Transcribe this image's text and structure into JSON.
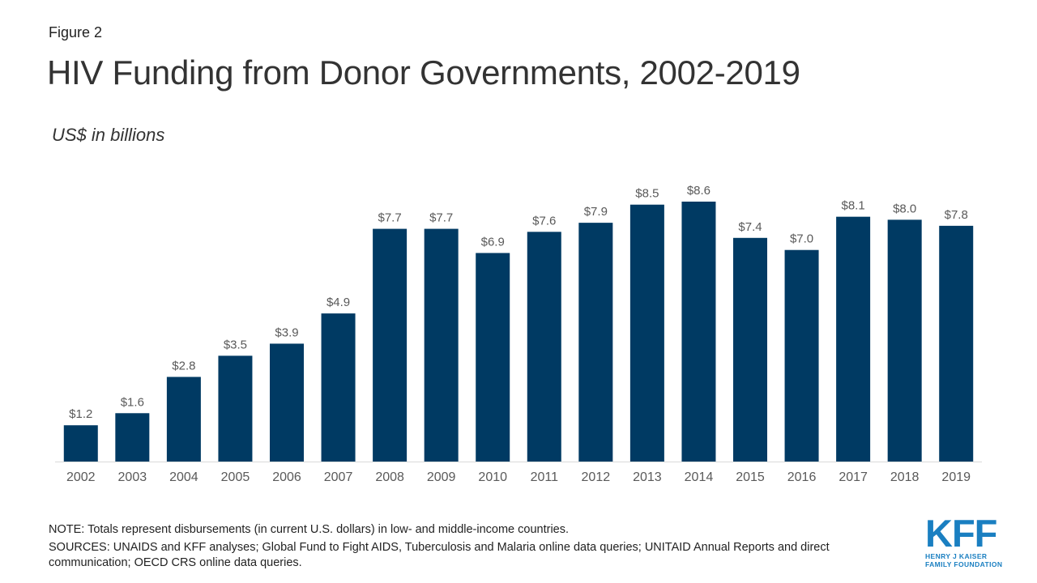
{
  "header": {
    "figure_label": "Figure 2",
    "title": "HIV Funding from Donor Governments, 2002-2019",
    "subtitle": "US$ in billions"
  },
  "footer": {
    "note": "NOTE: Totals represent disbursements (in current U.S. dollars) in low- and middle-income countries.",
    "sources": "SOURCES: UNAIDS and KFF analyses; Global Fund to Fight AIDS, Tuberculosis and Malaria online data queries; UNITAID Annual Reports and direct communication; OECD CRS online data queries."
  },
  "logo": {
    "mark": "KFF",
    "line1": "HENRY J KAISER",
    "line2": "FAMILY FOUNDATION"
  },
  "colors": {
    "bar": "#003a63",
    "label": "#595959",
    "axis": "#d9d9d9",
    "logo": "#1a7fc1"
  },
  "chart_data": {
    "type": "bar",
    "categories": [
      "2002",
      "2003",
      "2004",
      "2005",
      "2006",
      "2007",
      "2008",
      "2009",
      "2010",
      "2011",
      "2012",
      "2013",
      "2014",
      "2015",
      "2016",
      "2017",
      "2018",
      "2019"
    ],
    "values": [
      1.2,
      1.6,
      2.8,
      3.5,
      3.9,
      4.9,
      7.7,
      7.7,
      6.9,
      7.6,
      7.9,
      8.5,
      8.6,
      7.4,
      7.0,
      8.1,
      8.0,
      7.8
    ],
    "labels": [
      "$1.2",
      "$1.6",
      "$2.8",
      "$3.5",
      "$3.9",
      "$4.9",
      "$7.7",
      "$7.7",
      "$6.9",
      "$7.6",
      "$7.9",
      "$8.5",
      "$8.6",
      "$7.4",
      "$7.0",
      "$8.1",
      "$8.0",
      "$7.8"
    ],
    "title": "HIV Funding from Donor Governments, 2002-2019",
    "ylabel": "US$ in billions",
    "xlabel": "",
    "ylim": [
      0,
      8.6
    ],
    "grid": false,
    "legend": "none"
  }
}
